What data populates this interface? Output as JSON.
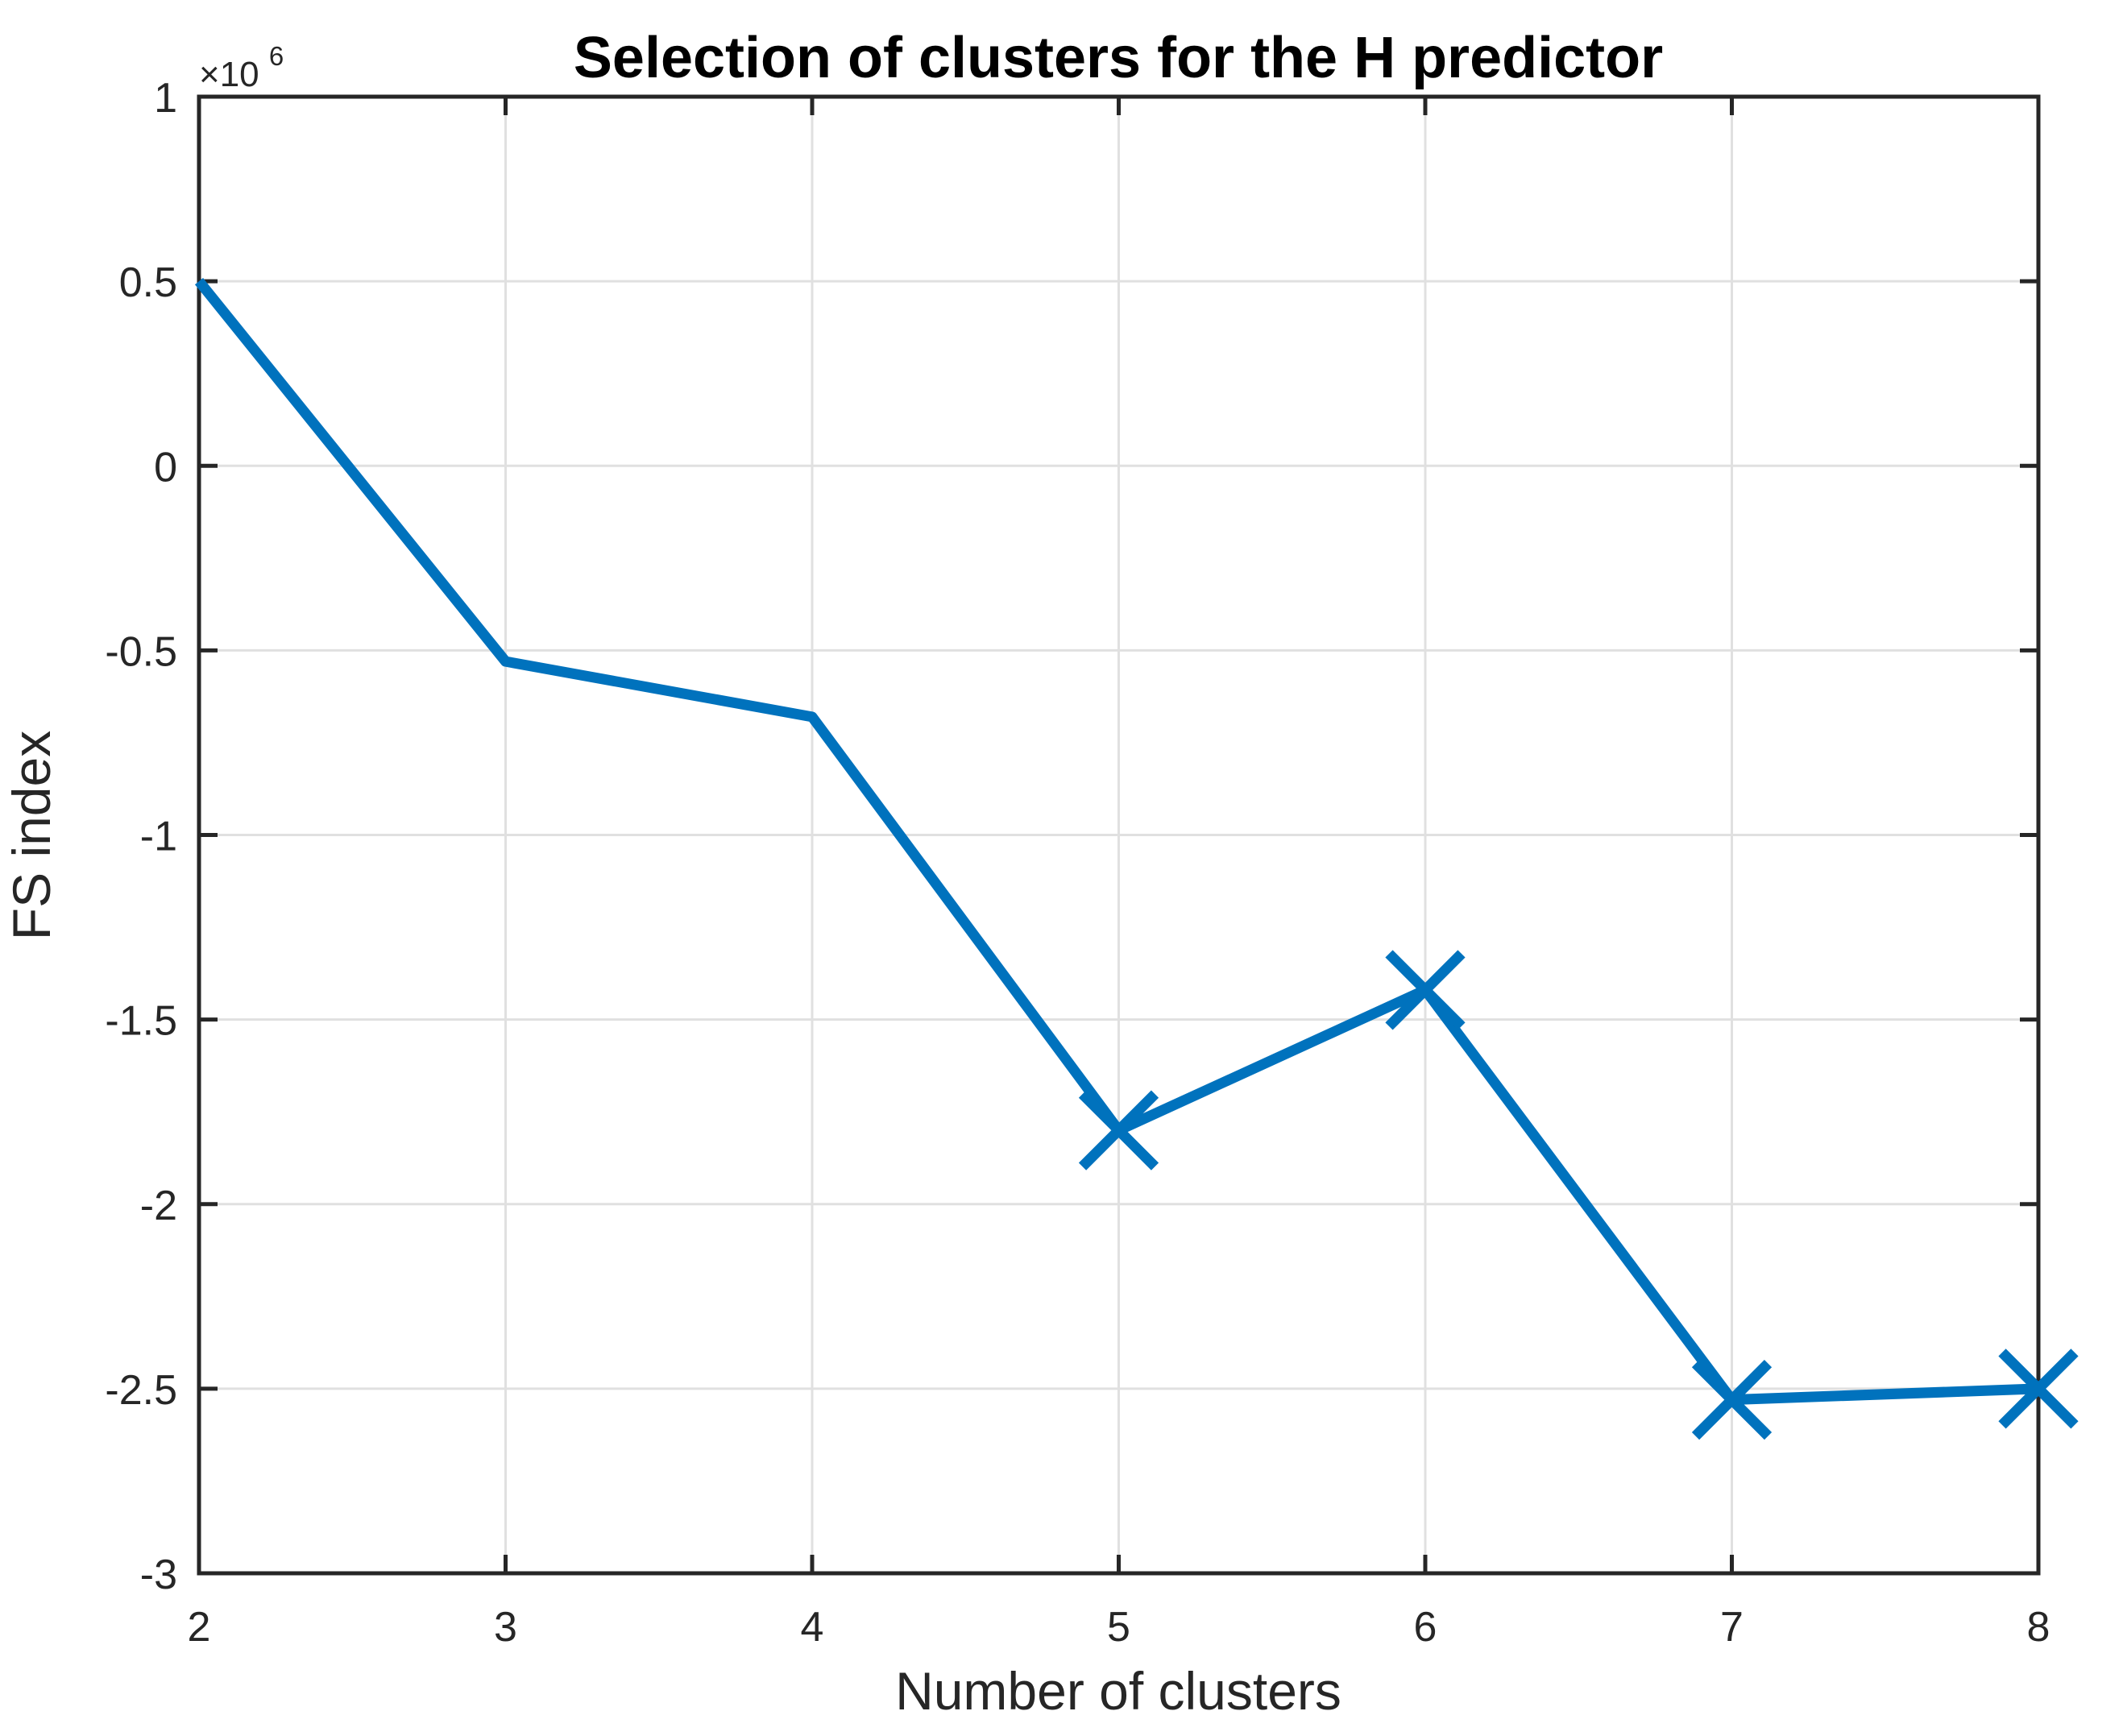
{
  "figure": {
    "background": "#FFFFFF"
  },
  "chart_data": {
    "type": "line",
    "title": "Selection of clusters for the H predictor",
    "xlabel": "Number of clusters",
    "ylabel": "FS index",
    "y_axis_exponent": {
      "base": "×10",
      "power": "6"
    },
    "x": [
      2,
      3,
      4,
      5,
      6,
      7,
      8
    ],
    "y": [
      500000,
      -530000,
      -680000,
      -1800000,
      -1420000,
      -2530000,
      -2500000
    ],
    "marker": {
      "shape": "x",
      "at_x": [
        5,
        6,
        7,
        8
      ]
    },
    "xlim": [
      2,
      8
    ],
    "ylim": [
      -3000000,
      1000000
    ],
    "x_ticks": [
      {
        "v": 2,
        "label": "2"
      },
      {
        "v": 3,
        "label": "3"
      },
      {
        "v": 4,
        "label": "4"
      },
      {
        "v": 5,
        "label": "5"
      },
      {
        "v": 6,
        "label": "6"
      },
      {
        "v": 7,
        "label": "7"
      },
      {
        "v": 8,
        "label": "8"
      }
    ],
    "y_ticks": [
      {
        "v": 1000000,
        "label": "1"
      },
      {
        "v": 500000,
        "label": "0.5"
      },
      {
        "v": 0,
        "label": "0"
      },
      {
        "v": -500000,
        "label": "-0.5"
      },
      {
        "v": -1000000,
        "label": "-1"
      },
      {
        "v": -1500000,
        "label": "-1.5"
      },
      {
        "v": -2000000,
        "label": "-2"
      },
      {
        "v": -2500000,
        "label": "-2.5"
      },
      {
        "v": -3000000,
        "label": "-3"
      }
    ],
    "grid": true,
    "colors": {
      "line": "#0072BD",
      "grid": "#E0E0E0",
      "axis": "#262626",
      "tick_label": "#262626",
      "title": "#000000"
    }
  }
}
